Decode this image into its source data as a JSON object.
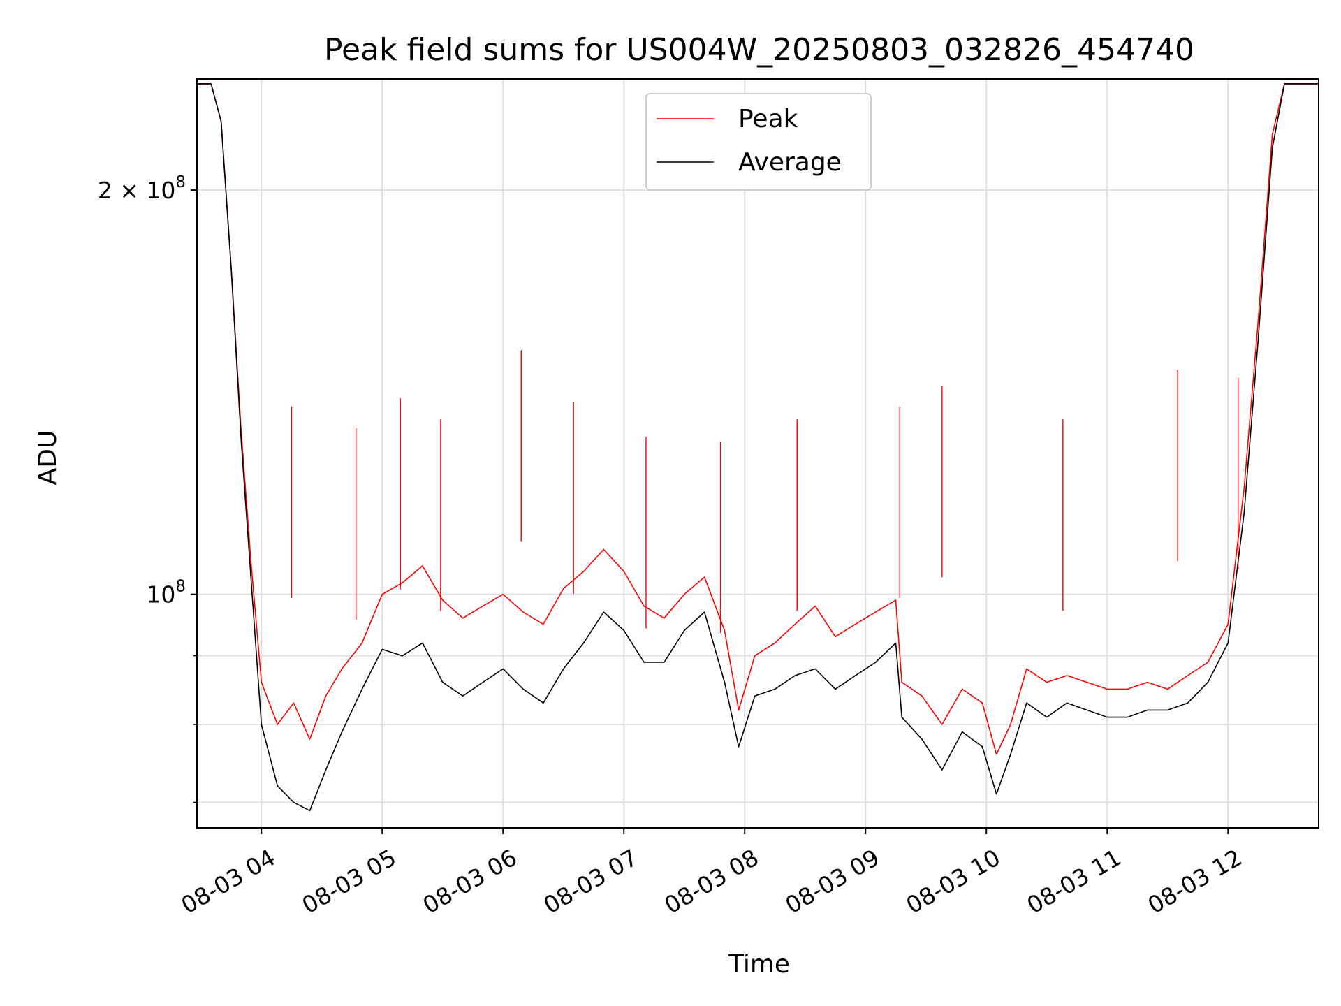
{
  "chart_data": {
    "type": "line",
    "title": "Peak field sums for US004W_20250803_032826_454740",
    "xlabel": "Time",
    "ylabel": "ADU",
    "yscale": "log",
    "ylim": [
      67000000,
      242000000
    ],
    "xlim": [
      "2025-08-03T03:28:00",
      "2025-08-03T12:45:00"
    ],
    "grid": true,
    "legend_position": "upper-center",
    "x_ticks": [
      {
        "label": "08-03 04",
        "t": "2025-08-03T04:00:00"
      },
      {
        "label": "08-03 05",
        "t": "2025-08-03T05:00:00"
      },
      {
        "label": "08-03 06",
        "t": "2025-08-03T06:00:00"
      },
      {
        "label": "08-03 07",
        "t": "2025-08-03T07:00:00"
      },
      {
        "label": "08-03 08",
        "t": "2025-08-03T08:00:00"
      },
      {
        "label": "08-03 09",
        "t": "2025-08-03T09:00:00"
      },
      {
        "label": "08-03 10",
        "t": "2025-08-03T10:00:00"
      },
      {
        "label": "08-03 11",
        "t": "2025-08-03T11:00:00"
      },
      {
        "label": "08-03 12",
        "t": "2025-08-03T12:00:00"
      }
    ],
    "y_ticks": [
      {
        "value": 100000000,
        "base": "10",
        "exp": "8",
        "mantissa": ""
      },
      {
        "value": 200000000,
        "base": "10",
        "exp": "8",
        "mantissa": "2 × "
      }
    ],
    "y_minor_ticks": [
      70000000,
      80000000,
      90000000
    ],
    "series": [
      {
        "name": "Peak",
        "color": "#ff0000",
        "points": [
          [
            "2025-08-03T03:28:00",
            240000000
          ],
          [
            "2025-08-03T03:35:00",
            240000000
          ],
          [
            "2025-08-03T03:40:00",
            225000000
          ],
          [
            "2025-08-03T03:45:00",
            175000000
          ],
          [
            "2025-08-03T03:50:00",
            132000000
          ],
          [
            "2025-08-03T03:55:00",
            105000000
          ],
          [
            "2025-08-03T04:00:00",
            86000000
          ],
          [
            "2025-08-03T04:08:00",
            80000000
          ],
          [
            "2025-08-03T04:16:00",
            83000000
          ],
          [
            "2025-08-03T04:24:00",
            78000000
          ],
          [
            "2025-08-03T04:32:00",
            84000000
          ],
          [
            "2025-08-03T04:40:00",
            88000000
          ],
          [
            "2025-08-03T04:50:00",
            92000000
          ],
          [
            "2025-08-03T05:00:00",
            100000000
          ],
          [
            "2025-08-03T05:10:00",
            102000000
          ],
          [
            "2025-08-03T05:20:00",
            105000000
          ],
          [
            "2025-08-03T05:30:00",
            99000000
          ],
          [
            "2025-08-03T05:40:00",
            96000000
          ],
          [
            "2025-08-03T05:50:00",
            98000000
          ],
          [
            "2025-08-03T06:00:00",
            100000000
          ],
          [
            "2025-08-03T06:10:00",
            97000000
          ],
          [
            "2025-08-03T06:20:00",
            95000000
          ],
          [
            "2025-08-03T06:30:00",
            101000000
          ],
          [
            "2025-08-03T06:40:00",
            104000000
          ],
          [
            "2025-08-03T06:50:00",
            108000000
          ],
          [
            "2025-08-03T07:00:00",
            104000000
          ],
          [
            "2025-08-03T07:10:00",
            98000000
          ],
          [
            "2025-08-03T07:20:00",
            96000000
          ],
          [
            "2025-08-03T07:30:00",
            100000000
          ],
          [
            "2025-08-03T07:40:00",
            103000000
          ],
          [
            "2025-08-03T07:50:00",
            94000000
          ],
          [
            "2025-08-03T07:57:00",
            82000000
          ],
          [
            "2025-08-03T08:05:00",
            90000000
          ],
          [
            "2025-08-03T08:15:00",
            92000000
          ],
          [
            "2025-08-03T08:25:00",
            95000000
          ],
          [
            "2025-08-03T08:35:00",
            98000000
          ],
          [
            "2025-08-03T08:45:00",
            93000000
          ],
          [
            "2025-08-03T08:55:00",
            95000000
          ],
          [
            "2025-08-03T09:05:00",
            97000000
          ],
          [
            "2025-08-03T09:15:00",
            99000000
          ],
          [
            "2025-08-03T09:18:00",
            86000000
          ],
          [
            "2025-08-03T09:28:00",
            84000000
          ],
          [
            "2025-08-03T09:38:00",
            80000000
          ],
          [
            "2025-08-03T09:48:00",
            85000000
          ],
          [
            "2025-08-03T09:58:00",
            83000000
          ],
          [
            "2025-08-03T10:05:00",
            76000000
          ],
          [
            "2025-08-03T10:12:00",
            80000000
          ],
          [
            "2025-08-03T10:20:00",
            88000000
          ],
          [
            "2025-08-03T10:30:00",
            86000000
          ],
          [
            "2025-08-03T10:40:00",
            87000000
          ],
          [
            "2025-08-03T10:50:00",
            86000000
          ],
          [
            "2025-08-03T11:00:00",
            85000000
          ],
          [
            "2025-08-03T11:10:00",
            85000000
          ],
          [
            "2025-08-03T11:20:00",
            86000000
          ],
          [
            "2025-08-03T11:30:00",
            85000000
          ],
          [
            "2025-08-03T11:40:00",
            87000000
          ],
          [
            "2025-08-03T11:50:00",
            89000000
          ],
          [
            "2025-08-03T12:00:00",
            95000000
          ],
          [
            "2025-08-03T12:08:00",
            120000000
          ],
          [
            "2025-08-03T12:15:00",
            160000000
          ],
          [
            "2025-08-03T12:22:00",
            220000000
          ],
          [
            "2025-08-03T12:28:00",
            240000000
          ],
          [
            "2025-08-03T12:45:00",
            240000000
          ]
        ],
        "spikes": [
          [
            "2025-08-03T04:15:00",
            138000000
          ],
          [
            "2025-08-03T04:47:00",
            133000000
          ],
          [
            "2025-08-03T05:09:00",
            140000000
          ],
          [
            "2025-08-03T05:29:00",
            135000000
          ],
          [
            "2025-08-03T06:09:00",
            152000000
          ],
          [
            "2025-08-03T06:35:00",
            139000000
          ],
          [
            "2025-08-03T07:11:00",
            131000000
          ],
          [
            "2025-08-03T07:48:00",
            130000000
          ],
          [
            "2025-08-03T08:26:00",
            135000000
          ],
          [
            "2025-08-03T09:17:00",
            138000000
          ],
          [
            "2025-08-03T09:38:00",
            143000000
          ],
          [
            "2025-08-03T10:38:00",
            135000000
          ],
          [
            "2025-08-03T11:35:00",
            147000000
          ],
          [
            "2025-08-03T12:05:00",
            145000000
          ]
        ]
      },
      {
        "name": "Average",
        "color": "#000000",
        "points": [
          [
            "2025-08-03T03:28:00",
            240000000
          ],
          [
            "2025-08-03T03:35:00",
            240000000
          ],
          [
            "2025-08-03T03:40:00",
            225000000
          ],
          [
            "2025-08-03T03:45:00",
            175000000
          ],
          [
            "2025-08-03T03:50:00",
            130000000
          ],
          [
            "2025-08-03T03:55:00",
            102000000
          ],
          [
            "2025-08-03T04:00:00",
            80000000
          ],
          [
            "2025-08-03T04:08:00",
            72000000
          ],
          [
            "2025-08-03T04:16:00",
            70000000
          ],
          [
            "2025-08-03T04:24:00",
            69000000
          ],
          [
            "2025-08-03T04:32:00",
            74000000
          ],
          [
            "2025-08-03T04:40:00",
            79000000
          ],
          [
            "2025-08-03T04:50:00",
            85000000
          ],
          [
            "2025-08-03T05:00:00",
            91000000
          ],
          [
            "2025-08-03T05:10:00",
            90000000
          ],
          [
            "2025-08-03T05:20:00",
            92000000
          ],
          [
            "2025-08-03T05:30:00",
            86000000
          ],
          [
            "2025-08-03T05:40:00",
            84000000
          ],
          [
            "2025-08-03T05:50:00",
            86000000
          ],
          [
            "2025-08-03T06:00:00",
            88000000
          ],
          [
            "2025-08-03T06:10:00",
            85000000
          ],
          [
            "2025-08-03T06:20:00",
            83000000
          ],
          [
            "2025-08-03T06:30:00",
            88000000
          ],
          [
            "2025-08-03T06:40:00",
            92000000
          ],
          [
            "2025-08-03T06:50:00",
            97000000
          ],
          [
            "2025-08-03T07:00:00",
            94000000
          ],
          [
            "2025-08-03T07:10:00",
            89000000
          ],
          [
            "2025-08-03T07:20:00",
            89000000
          ],
          [
            "2025-08-03T07:30:00",
            94000000
          ],
          [
            "2025-08-03T07:40:00",
            97000000
          ],
          [
            "2025-08-03T07:50:00",
            86000000
          ],
          [
            "2025-08-03T07:57:00",
            77000000
          ],
          [
            "2025-08-03T08:05:00",
            84000000
          ],
          [
            "2025-08-03T08:15:00",
            85000000
          ],
          [
            "2025-08-03T08:25:00",
            87000000
          ],
          [
            "2025-08-03T08:35:00",
            88000000
          ],
          [
            "2025-08-03T08:45:00",
            85000000
          ],
          [
            "2025-08-03T08:55:00",
            87000000
          ],
          [
            "2025-08-03T09:05:00",
            89000000
          ],
          [
            "2025-08-03T09:15:00",
            92000000
          ],
          [
            "2025-08-03T09:18:00",
            81000000
          ],
          [
            "2025-08-03T09:28:00",
            78000000
          ],
          [
            "2025-08-03T09:38:00",
            74000000
          ],
          [
            "2025-08-03T09:48:00",
            79000000
          ],
          [
            "2025-08-03T09:58:00",
            77000000
          ],
          [
            "2025-08-03T10:05:00",
            71000000
          ],
          [
            "2025-08-03T10:12:00",
            76000000
          ],
          [
            "2025-08-03T10:20:00",
            83000000
          ],
          [
            "2025-08-03T10:30:00",
            81000000
          ],
          [
            "2025-08-03T10:40:00",
            83000000
          ],
          [
            "2025-08-03T10:50:00",
            82000000
          ],
          [
            "2025-08-03T11:00:00",
            81000000
          ],
          [
            "2025-08-03T11:10:00",
            81000000
          ],
          [
            "2025-08-03T11:20:00",
            82000000
          ],
          [
            "2025-08-03T11:30:00",
            82000000
          ],
          [
            "2025-08-03T11:40:00",
            83000000
          ],
          [
            "2025-08-03T11:50:00",
            86000000
          ],
          [
            "2025-08-03T12:00:00",
            92000000
          ],
          [
            "2025-08-03T12:08:00",
            115000000
          ],
          [
            "2025-08-03T12:15:00",
            155000000
          ],
          [
            "2025-08-03T12:22:00",
            215000000
          ],
          [
            "2025-08-03T12:28:00",
            240000000
          ],
          [
            "2025-08-03T12:45:00",
            240000000
          ]
        ]
      }
    ]
  }
}
